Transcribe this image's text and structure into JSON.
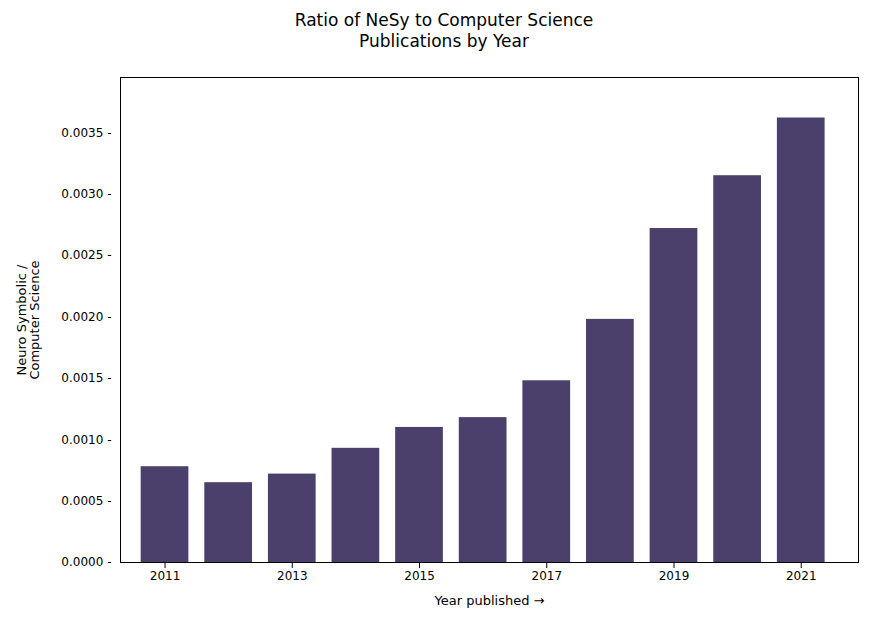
{
  "chart_data": {
    "type": "bar",
    "title": "Ratio of NeSy to Computer Science\nPublications by Year",
    "xlabel": "Year published",
    "ylabel": "Neuro Symbolic /\nComputer Science",
    "x": [
      2011,
      2012,
      2013,
      2014,
      2015,
      2016,
      2017,
      2018,
      2019,
      2020,
      2021
    ],
    "values": [
      0.00078,
      0.00065,
      0.00072,
      0.00093,
      0.0011,
      0.00118,
      0.00148,
      0.00198,
      0.00272,
      0.00315,
      0.00362
    ],
    "color": "#4b3f6b",
    "xlim": [
      2010.3,
      2021.9
    ],
    "xticks": [
      2011,
      2013,
      2015,
      2017,
      2019,
      2021
    ],
    "ylim": [
      0,
      0.00395
    ],
    "yticks": [
      {
        "value": 0.0,
        "label": "0.0000 -"
      },
      {
        "value": 0.0005,
        "label": "0.0005 -"
      },
      {
        "value": 0.001,
        "label": "0.0010 -"
      },
      {
        "value": 0.0015,
        "label": "0.0015 -"
      },
      {
        "value": 0.002,
        "label": "0.0020 -"
      },
      {
        "value": 0.0025,
        "label": "0.0025 -"
      },
      {
        "value": 0.003,
        "label": "0.0030 -"
      },
      {
        "value": 0.0035,
        "label": "0.0035 -"
      }
    ],
    "grid": false
  }
}
